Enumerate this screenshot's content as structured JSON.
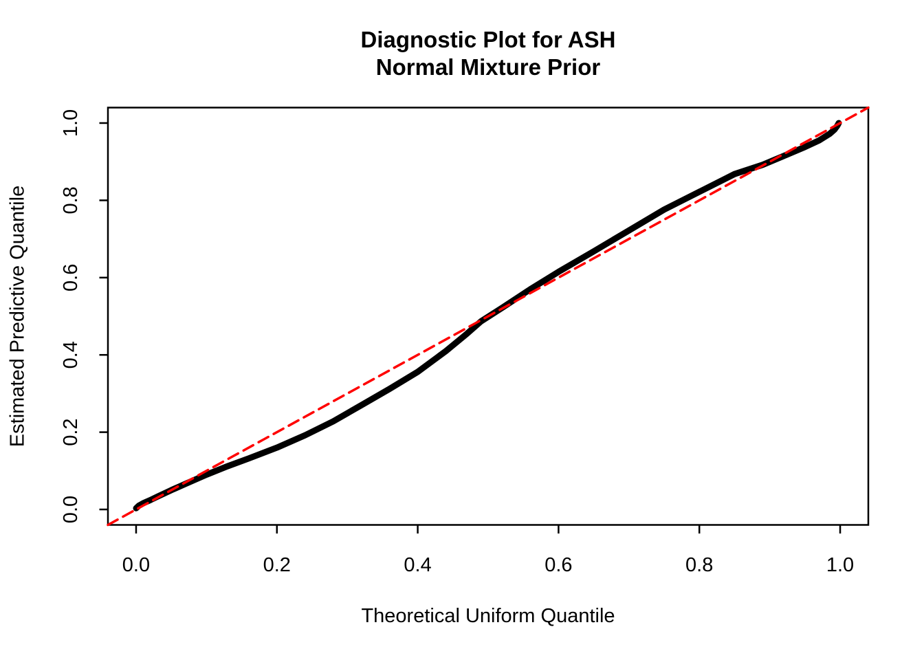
{
  "page": {
    "background_color": "#FFFFFF",
    "plot_foreground_color": "#000000",
    "reference_line_color": "#FF0000"
  },
  "chart_data": {
    "type": "scatter",
    "title": "Diagnostic Plot for ASH\nNormal Mixture Prior",
    "title_lines": [
      "Diagnostic Plot for ASH",
      "Normal Mixture Prior"
    ],
    "xlabel": "Theoretical Uniform Quantile",
    "ylabel": "Estimated Predictive Quantile",
    "xlim": [
      -0.04,
      1.04
    ],
    "ylim": [
      -0.04,
      1.04
    ],
    "grid": false,
    "legend": "none",
    "x_ticks": {
      "values": [
        0.0,
        0.2,
        0.4,
        0.6,
        0.8,
        1.0
      ],
      "labels": [
        "0.0",
        "0.2",
        "0.4",
        "0.6",
        "0.8",
        "1.0"
      ]
    },
    "y_ticks": {
      "values": [
        0.0,
        0.2,
        0.4,
        0.6,
        0.8,
        1.0
      ],
      "labels": [
        "0.0",
        "0.2",
        "0.4",
        "0.6",
        "0.8",
        "1.0"
      ]
    },
    "series": [
      {
        "name": "estimated-predictive-quantiles",
        "description": "QQ curve of estimated predictive quantile vs theoretical uniform quantile (dense black points)",
        "type": "line",
        "color": "#000000",
        "stroke_width": 9,
        "dashed": false,
        "points": [
          [
            0.0,
            0.003
          ],
          [
            0.004,
            0.01
          ],
          [
            0.01,
            0.016
          ],
          [
            0.02,
            0.024
          ],
          [
            0.03,
            0.033
          ],
          [
            0.05,
            0.05
          ],
          [
            0.07,
            0.066
          ],
          [
            0.1,
            0.09
          ],
          [
            0.13,
            0.112
          ],
          [
            0.16,
            0.132
          ],
          [
            0.2,
            0.16
          ],
          [
            0.24,
            0.192
          ],
          [
            0.28,
            0.228
          ],
          [
            0.32,
            0.27
          ],
          [
            0.36,
            0.312
          ],
          [
            0.4,
            0.356
          ],
          [
            0.44,
            0.41
          ],
          [
            0.47,
            0.455
          ],
          [
            0.49,
            0.487
          ],
          [
            0.52,
            0.522
          ],
          [
            0.56,
            0.57
          ],
          [
            0.6,
            0.615
          ],
          [
            0.65,
            0.668
          ],
          [
            0.7,
            0.722
          ],
          [
            0.75,
            0.776
          ],
          [
            0.8,
            0.822
          ],
          [
            0.85,
            0.868
          ],
          [
            0.89,
            0.892
          ],
          [
            0.92,
            0.915
          ],
          [
            0.95,
            0.938
          ],
          [
            0.97,
            0.955
          ],
          [
            0.985,
            0.972
          ],
          [
            0.992,
            0.983
          ],
          [
            0.996,
            0.993
          ],
          [
            0.998,
            1.0
          ]
        ]
      },
      {
        "name": "diagonal-reference-line",
        "description": "y = x reference line (red dashed)",
        "type": "line",
        "color": "#FF0000",
        "stroke_width": 3.5,
        "dashed": true,
        "points": [
          [
            -0.04,
            -0.04
          ],
          [
            1.04,
            1.04
          ]
        ]
      }
    ]
  }
}
